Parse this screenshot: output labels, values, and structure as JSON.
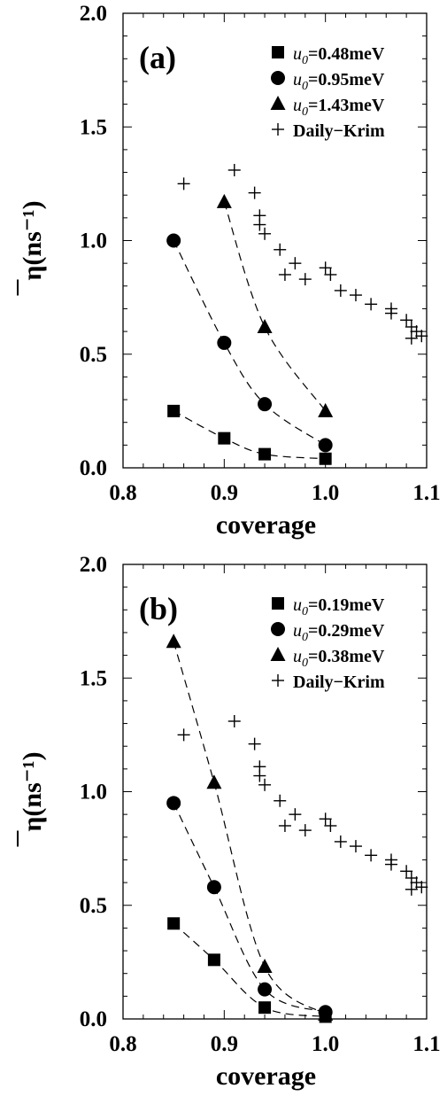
{
  "chart_data": [
    {
      "type": "scatter",
      "panel_label": "(a)",
      "xlabel": "coverage",
      "ylabel": "η(ns⁻¹)",
      "xlim": [
        0.8,
        1.1
      ],
      "ylim": [
        0.0,
        2.0
      ],
      "xticks": [
        "0.8",
        "0.9",
        "1.0",
        "1.1"
      ],
      "yticks": [
        "0.0",
        "0.5",
        "1.0",
        "1.5",
        "2.0"
      ],
      "legend_position": "top-right",
      "series": [
        {
          "name": "u0=0.48meV",
          "legend_var": "u",
          "legend_sub": "0",
          "legend_rest": "=0.48meV",
          "marker": "square",
          "fit": "dashed",
          "x": [
            0.85,
            0.9,
            0.94,
            1.0
          ],
          "y": [
            0.25,
            0.13,
            0.06,
            0.04
          ]
        },
        {
          "name": "u0=0.95meV",
          "legend_var": "u",
          "legend_sub": "0",
          "legend_rest": "=0.95meV",
          "marker": "circle",
          "fit": "dashed",
          "x": [
            0.85,
            0.9,
            0.94,
            1.0
          ],
          "y": [
            1.0,
            0.55,
            0.28,
            0.1
          ]
        },
        {
          "name": "u0=1.43meV",
          "legend_var": "u",
          "legend_sub": "0",
          "legend_rest": "=1.43meV",
          "marker": "triangle",
          "fit": "dashed",
          "x": [
            0.9,
            0.94,
            1.0
          ],
          "y": [
            1.17,
            0.62,
            0.25
          ]
        },
        {
          "name": "Daily−Krim",
          "legend_var": "",
          "legend_sub": "",
          "legend_rest": "Daily−Krim",
          "marker": "plus",
          "fit": "none",
          "x": [
            0.86,
            0.91,
            0.93,
            0.935,
            0.935,
            0.94,
            0.955,
            0.96,
            0.97,
            0.98,
            1.0,
            1.005,
            1.015,
            1.03,
            1.045,
            1.065,
            1.065,
            1.08,
            1.085,
            1.085,
            1.09,
            1.095
          ],
          "y": [
            1.25,
            1.31,
            1.21,
            1.11,
            1.07,
            1.03,
            0.96,
            0.85,
            0.9,
            0.83,
            0.88,
            0.85,
            0.78,
            0.76,
            0.72,
            0.7,
            0.68,
            0.65,
            0.62,
            0.57,
            0.6,
            0.58
          ]
        }
      ]
    },
    {
      "type": "scatter",
      "panel_label": "(b)",
      "xlabel": "coverage",
      "ylabel": "η(ns⁻¹)",
      "xlim": [
        0.8,
        1.1
      ],
      "ylim": [
        0.0,
        2.0
      ],
      "xticks": [
        "0.8",
        "0.9",
        "1.0",
        "1.1"
      ],
      "yticks": [
        "0.0",
        "0.5",
        "1.0",
        "1.5",
        "2.0"
      ],
      "legend_position": "top-right",
      "series": [
        {
          "name": "u0=0.19meV",
          "legend_var": "u",
          "legend_sub": "0",
          "legend_rest": "=0.19meV",
          "marker": "square",
          "fit": "dashed",
          "x": [
            0.85,
            0.89,
            0.94,
            1.0
          ],
          "y": [
            0.42,
            0.26,
            0.05,
            0.01
          ]
        },
        {
          "name": "u0=0.29meV",
          "legend_var": "u",
          "legend_sub": "0",
          "legend_rest": "=0.29meV",
          "marker": "circle",
          "fit": "dashed",
          "x": [
            0.85,
            0.89,
            0.94,
            1.0
          ],
          "y": [
            0.95,
            0.58,
            0.13,
            0.03
          ]
        },
        {
          "name": "u0=0.38meV",
          "legend_var": "u",
          "legend_sub": "0",
          "legend_rest": "=0.38meV",
          "marker": "triangle",
          "fit": "dashed",
          "x": [
            0.85,
            0.89,
            0.94,
            1.0
          ],
          "y": [
            1.66,
            1.04,
            0.23,
            0.02
          ]
        },
        {
          "name": "Daily−Krim",
          "legend_var": "",
          "legend_sub": "",
          "legend_rest": "Daily−Krim",
          "marker": "plus",
          "fit": "none",
          "x": [
            0.86,
            0.91,
            0.93,
            0.935,
            0.935,
            0.94,
            0.955,
            0.96,
            0.97,
            0.98,
            1.0,
            1.005,
            1.015,
            1.03,
            1.045,
            1.065,
            1.065,
            1.08,
            1.085,
            1.085,
            1.09,
            1.095
          ],
          "y": [
            1.25,
            1.31,
            1.21,
            1.11,
            1.07,
            1.03,
            0.96,
            0.85,
            0.9,
            0.83,
            0.88,
            0.85,
            0.78,
            0.76,
            0.72,
            0.7,
            0.68,
            0.65,
            0.62,
            0.57,
            0.6,
            0.58
          ]
        }
      ]
    }
  ]
}
